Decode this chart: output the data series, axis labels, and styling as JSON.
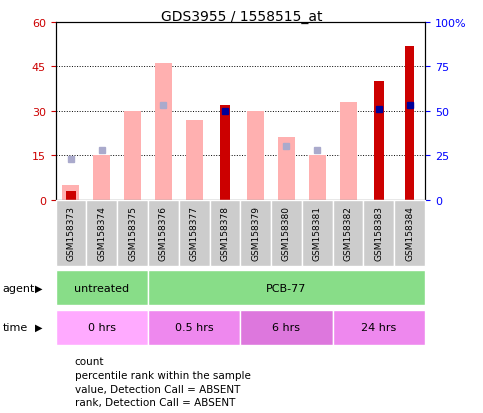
{
  "title": "GDS3955 / 1558515_at",
  "samples": [
    "GSM158373",
    "GSM158374",
    "GSM158375",
    "GSM158376",
    "GSM158377",
    "GSM158378",
    "GSM158379",
    "GSM158380",
    "GSM158381",
    "GSM158382",
    "GSM158383",
    "GSM158384"
  ],
  "count_values": [
    3,
    null,
    null,
    null,
    null,
    32,
    null,
    null,
    null,
    null,
    40,
    52
  ],
  "count_color": "#cc0000",
  "value_absent": [
    5,
    15,
    30,
    46,
    27,
    null,
    30,
    21,
    15,
    33,
    null,
    null
  ],
  "value_absent_color": "#ffb0b0",
  "rank_absent_pct": [
    23,
    28,
    null,
    53,
    null,
    null,
    null,
    30,
    28,
    null,
    null,
    null
  ],
  "rank_absent_color": "#aaaacc",
  "percentile_rank_pct": [
    null,
    null,
    null,
    null,
    null,
    50,
    null,
    null,
    null,
    null,
    51,
    53
  ],
  "percentile_rank_color": "#000099",
  "ylim_left": [
    0,
    60
  ],
  "ylim_right": [
    0,
    100
  ],
  "yticks_left": [
    0,
    15,
    30,
    45,
    60
  ],
  "yticks_right": [
    0,
    25,
    50,
    75,
    100
  ],
  "ytick_labels_left": [
    "0",
    "15",
    "30",
    "45",
    "60"
  ],
  "ytick_labels_right": [
    "0",
    "25",
    "50",
    "75",
    "100%"
  ],
  "agent_groups": [
    {
      "label": "untreated",
      "start": 0,
      "end": 3
    },
    {
      "label": "PCB-77",
      "start": 3,
      "end": 12
    }
  ],
  "time_groups": [
    {
      "label": "0 hrs",
      "start": 0,
      "end": 3,
      "color": "#ffaaff"
    },
    {
      "label": "0.5 hrs",
      "start": 3,
      "end": 6,
      "color": "#ee88ee"
    },
    {
      "label": "6 hrs",
      "start": 6,
      "end": 9,
      "color": "#dd77dd"
    },
    {
      "label": "24 hrs",
      "start": 9,
      "end": 12,
      "color": "#ee88ee"
    }
  ],
  "legend_items": [
    {
      "label": "count",
      "color": "#cc0000"
    },
    {
      "label": "percentile rank within the sample",
      "color": "#000099"
    },
    {
      "label": "value, Detection Call = ABSENT",
      "color": "#ffb0b0"
    },
    {
      "label": "rank, Detection Call = ABSENT",
      "color": "#aaaacc"
    }
  ],
  "bg_color": "#ffffff",
  "sample_bg": "#cccccc",
  "agent_color": "#88dd88"
}
